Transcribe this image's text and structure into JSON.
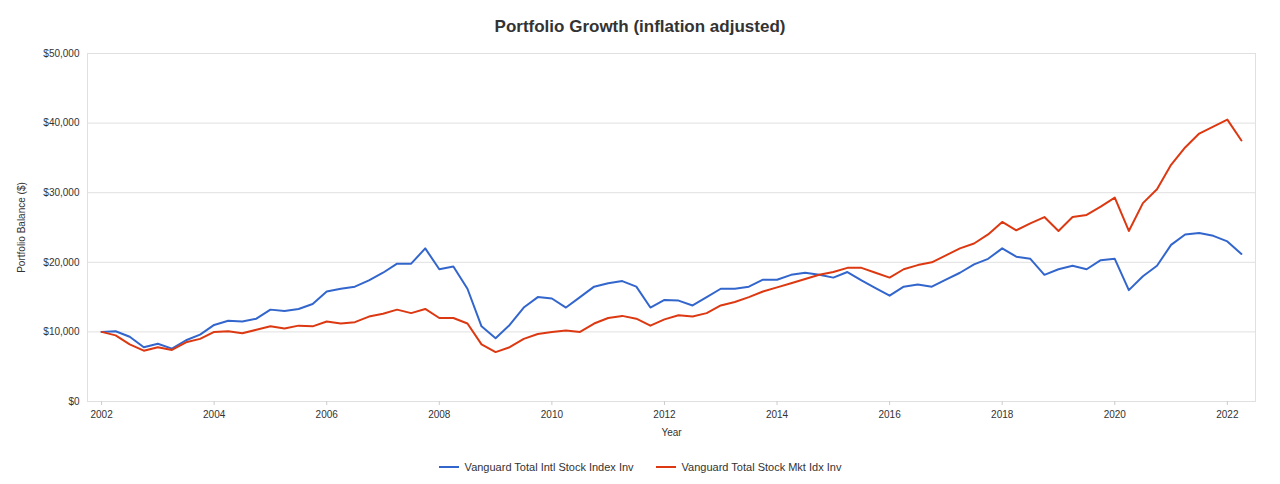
{
  "chart_data": {
    "type": "line",
    "title": "Portfolio Growth (inflation adjusted)",
    "x_label": "Year",
    "y_label": "Portfolio Balance ($)",
    "x": [
      2002.0,
      2002.25,
      2002.5,
      2002.75,
      2003.0,
      2003.25,
      2003.5,
      2003.75,
      2004.0,
      2004.25,
      2004.5,
      2004.75,
      2005.0,
      2005.25,
      2005.5,
      2005.75,
      2006.0,
      2006.25,
      2006.5,
      2006.75,
      2007.0,
      2007.25,
      2007.5,
      2007.75,
      2008.0,
      2008.25,
      2008.5,
      2008.75,
      2009.0,
      2009.25,
      2009.5,
      2009.75,
      2010.0,
      2010.25,
      2010.5,
      2010.75,
      2011.0,
      2011.25,
      2011.5,
      2011.75,
      2012.0,
      2012.25,
      2012.5,
      2012.75,
      2013.0,
      2013.25,
      2013.5,
      2013.75,
      2014.0,
      2014.25,
      2014.5,
      2014.75,
      2015.0,
      2015.25,
      2015.5,
      2015.75,
      2016.0,
      2016.25,
      2016.5,
      2016.75,
      2017.0,
      2017.25,
      2017.5,
      2017.75,
      2018.0,
      2018.25,
      2018.5,
      2018.75,
      2019.0,
      2019.25,
      2019.5,
      2019.75,
      2020.0,
      2020.25,
      2020.5,
      2020.75,
      2021.0,
      2021.25,
      2021.5,
      2021.75,
      2022.0,
      2022.25
    ],
    "series": [
      {
        "name": "Vanguard Total Intl Stock Index Inv",
        "color": "#3366cc",
        "values": [
          10000,
          10100,
          9300,
          7800,
          8300,
          7600,
          8800,
          9600,
          11000,
          11600,
          11500,
          11900,
          13200,
          13000,
          13300,
          14000,
          15800,
          16200,
          16500,
          17400,
          18500,
          19800,
          19800,
          22000,
          19000,
          19400,
          16200,
          10800,
          9100,
          11000,
          13500,
          15000,
          14800,
          13500,
          15000,
          16500,
          17000,
          17300,
          16500,
          13500,
          14600,
          14500,
          13800,
          15000,
          16200,
          16200,
          16500,
          17500,
          17500,
          18200,
          18500,
          18200,
          17800,
          18600,
          17400,
          16300,
          15200,
          16500,
          16800,
          16500,
          17500,
          18500,
          19700,
          20500,
          22000,
          20800,
          20500,
          18200,
          19000,
          19500,
          19000,
          20300,
          20500,
          16000,
          18000,
          19500,
          22500,
          24000,
          24200,
          23800,
          23000,
          21200
        ]
      },
      {
        "name": "Vanguard Total Stock Mkt Idx Inv",
        "color": "#dc3912",
        "values": [
          10000,
          9500,
          8200,
          7300,
          7800,
          7400,
          8500,
          9000,
          10000,
          10100,
          9800,
          10300,
          10800,
          10500,
          10900,
          10800,
          11500,
          11200,
          11400,
          12200,
          12600,
          13200,
          12700,
          13300,
          12000,
          12000,
          11200,
          8200,
          7100,
          7800,
          9000,
          9700,
          10000,
          10200,
          10000,
          11200,
          12000,
          12300,
          11900,
          10900,
          11800,
          12400,
          12200,
          12700,
          13800,
          14300,
          15000,
          15800,
          16400,
          17000,
          17600,
          18200,
          18600,
          19200,
          19200,
          18500,
          17800,
          19000,
          19600,
          20000,
          21000,
          22000,
          22700,
          24000,
          25800,
          24600,
          25600,
          26500,
          24500,
          26500,
          26800,
          28000,
          29300,
          24500,
          28500,
          30500,
          34000,
          36500,
          38500,
          39500,
          40500,
          37500
        ]
      }
    ],
    "xlim": [
      2001.75,
      2022.5
    ],
    "xticks": [
      2002,
      2004,
      2006,
      2008,
      2010,
      2012,
      2014,
      2016,
      2018,
      2020,
      2022
    ],
    "ylim": [
      0,
      50000
    ],
    "yticks": [
      {
        "value": 0,
        "label": "$0"
      },
      {
        "value": 10000,
        "label": "$10,000"
      },
      {
        "value": 20000,
        "label": "$20,000"
      },
      {
        "value": 30000,
        "label": "$30,000"
      },
      {
        "value": 40000,
        "label": "$40,000"
      },
      {
        "value": 50000,
        "label": "$50,000"
      }
    ],
    "grid": true,
    "legend": "bottom"
  }
}
